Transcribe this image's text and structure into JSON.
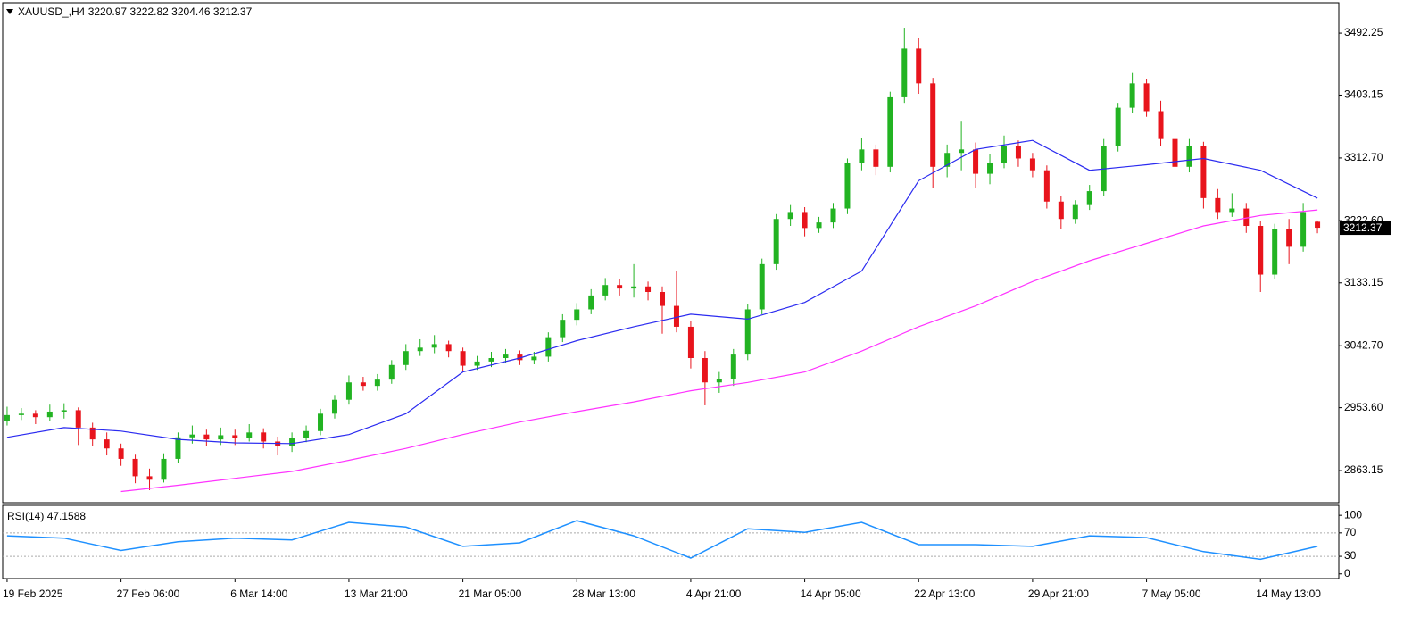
{
  "chart_data": {
    "type": "candlestick",
    "symbol": "XAUUSD_,H4",
    "up_color": "#22b322",
    "down_color": "#e8141c",
    "candles": [
      [
        2935,
        2955,
        2928,
        2943
      ],
      [
        2943,
        2953,
        2936,
        2945
      ],
      [
        2945,
        2950,
        2930,
        2940
      ],
      [
        2940,
        2958,
        2934,
        2948
      ],
      [
        2948,
        2960,
        2938,
        2950
      ],
      [
        2950,
        2954,
        2900,
        2925
      ],
      [
        2925,
        2932,
        2898,
        2908
      ],
      [
        2908,
        2918,
        2885,
        2895
      ],
      [
        2895,
        2902,
        2870,
        2880
      ],
      [
        2880,
        2886,
        2845,
        2855
      ],
      [
        2855,
        2866,
        2835,
        2850
      ],
      [
        2850,
        2888,
        2846,
        2880
      ],
      [
        2880,
        2918,
        2874,
        2911
      ],
      [
        2911,
        2928,
        2902,
        2915
      ],
      [
        2915,
        2922,
        2898,
        2908
      ],
      [
        2908,
        2925,
        2900,
        2914
      ],
      [
        2914,
        2922,
        2900,
        2910
      ],
      [
        2910,
        2930,
        2905,
        2918
      ],
      [
        2918,
        2924,
        2895,
        2905
      ],
      [
        2905,
        2912,
        2885,
        2898
      ],
      [
        2898,
        2918,
        2890,
        2910
      ],
      [
        2910,
        2928,
        2904,
        2920
      ],
      [
        2920,
        2952,
        2914,
        2945
      ],
      [
        2945,
        2972,
        2938,
        2965
      ],
      [
        2965,
        3000,
        2958,
        2990
      ],
      [
        2990,
        2998,
        2978,
        2985
      ],
      [
        2985,
        3002,
        2978,
        2994
      ],
      [
        2994,
        3022,
        2988,
        3015
      ],
      [
        3015,
        3045,
        3008,
        3035
      ],
      [
        3035,
        3052,
        3028,
        3040
      ],
      [
        3040,
        3058,
        3032,
        3045
      ],
      [
        3045,
        3050,
        3026,
        3035
      ],
      [
        3035,
        3040,
        3005,
        3014
      ],
      [
        3014,
        3028,
        3008,
        3020
      ],
      [
        3020,
        3034,
        3012,
        3025
      ],
      [
        3025,
        3038,
        3018,
        3030
      ],
      [
        3030,
        3036,
        3015,
        3022
      ],
      [
        3022,
        3034,
        3016,
        3027
      ],
      [
        3027,
        3062,
        3020,
        3055
      ],
      [
        3055,
        3088,
        3048,
        3080
      ],
      [
        3080,
        3104,
        3072,
        3095
      ],
      [
        3095,
        3124,
        3088,
        3115
      ],
      [
        3115,
        3140,
        3108,
        3130
      ],
      [
        3130,
        3138,
        3115,
        3125
      ],
      [
        3125,
        3160,
        3112,
        3128
      ],
      [
        3128,
        3135,
        3108,
        3120
      ],
      [
        3120,
        3128,
        3060,
        3100
      ],
      [
        3100,
        3150,
        3062,
        3070
      ],
      [
        3070,
        3078,
        3010,
        3025
      ],
      [
        3025,
        3035,
        2957,
        2990
      ],
      [
        2990,
        3005,
        2975,
        2995
      ],
      [
        2995,
        3038,
        2985,
        3030
      ],
      [
        3030,
        3102,
        3022,
        3095
      ],
      [
        3095,
        3168,
        3088,
        3160
      ],
      [
        3160,
        3232,
        3152,
        3225
      ],
      [
        3225,
        3245,
        3215,
        3235
      ],
      [
        3235,
        3242,
        3200,
        3212
      ],
      [
        3212,
        3228,
        3205,
        3220
      ],
      [
        3220,
        3248,
        3212,
        3240
      ],
      [
        3240,
        3312,
        3232,
        3305
      ],
      [
        3305,
        3342,
        3295,
        3325
      ],
      [
        3325,
        3332,
        3288,
        3300
      ],
      [
        3300,
        3408,
        3292,
        3400
      ],
      [
        3400,
        3500,
        3392,
        3470
      ],
      [
        3470,
        3485,
        3405,
        3420
      ],
      [
        3420,
        3428,
        3270,
        3300
      ],
      [
        3300,
        3332,
        3285,
        3320
      ],
      [
        3320,
        3365,
        3295,
        3325
      ],
      [
        3325,
        3335,
        3270,
        3290
      ],
      [
        3290,
        3318,
        3275,
        3305
      ],
      [
        3305,
        3345,
        3298,
        3330
      ],
      [
        3330,
        3338,
        3300,
        3312
      ],
      [
        3312,
        3320,
        3285,
        3295
      ],
      [
        3295,
        3302,
        3240,
        3250
      ],
      [
        3250,
        3258,
        3210,
        3225
      ],
      [
        3225,
        3252,
        3218,
        3245
      ],
      [
        3245,
        3274,
        3238,
        3265
      ],
      [
        3265,
        3340,
        3258,
        3330
      ],
      [
        3330,
        3392,
        3322,
        3385
      ],
      [
        3385,
        3435,
        3378,
        3420
      ],
      [
        3420,
        3426,
        3372,
        3380
      ],
      [
        3380,
        3395,
        3330,
        3340
      ],
      [
        3340,
        3348,
        3285,
        3300
      ],
      [
        3300,
        3340,
        3292,
        3330
      ],
      [
        3330,
        3336,
        3240,
        3255
      ],
      [
        3255,
        3268,
        3225,
        3235
      ],
      [
        3235,
        3262,
        3228,
        3240
      ],
      [
        3240,
        3248,
        3205,
        3215
      ],
      [
        3215,
        3222,
        3120,
        3145
      ],
      [
        3145,
        3218,
        3138,
        3210
      ],
      [
        3210,
        3225,
        3160,
        3185
      ],
      [
        3185,
        3248,
        3178,
        3235
      ],
      [
        3220.97,
        3222.82,
        3204.46,
        3212.37
      ]
    ],
    "xlim": [
      -0.31,
      93.5
    ],
    "xticks": [
      {
        "value": 0,
        "label": "19 Feb 2025"
      },
      {
        "value": 8,
        "label": "27 Feb 06:00"
      },
      {
        "value": 16,
        "label": "6 Mar 14:00"
      },
      {
        "value": 24,
        "label": "13 Mar 21:00"
      },
      {
        "value": 32,
        "label": "21 Mar 05:00"
      },
      {
        "value": 40,
        "label": "28 Mar 13:00"
      },
      {
        "value": 48,
        "label": "4 Apr 21:00"
      },
      {
        "value": 56,
        "label": "14 Apr 05:00"
      },
      {
        "value": 64,
        "label": "22 Apr 13:00"
      },
      {
        "value": 72,
        "label": "29 Apr 21:00"
      },
      {
        "value": 80,
        "label": "7 May 05:00"
      },
      {
        "value": 88,
        "label": "14 May 13:00"
      }
    ],
    "ylim": [
      2817,
      3536
    ],
    "yticks": [
      3492.25,
      3403.15,
      {
        "value": 3312.7,
        "label": "3312.70"
      },
      {
        "value": 3222.6,
        "label": "3222.60"
      },
      3133.15,
      {
        "value": 3042.7,
        "label": "3042.70"
      },
      {
        "value": 2953.6,
        "label": "2953.60"
      },
      2863.15
    ],
    "series": [
      {
        "color": "#2b2bf0",
        "x": [
          0,
          4,
          8,
          12,
          16,
          20,
          24,
          28,
          32,
          36,
          40,
          44,
          48,
          52,
          56,
          60,
          64,
          68,
          72,
          76,
          80,
          84,
          88,
          92
        ],
        "values": [
          2911,
          2925,
          2920,
          2908,
          2903,
          2902,
          2915,
          2945,
          3005,
          3025,
          3050,
          3070,
          3088,
          3081,
          3105,
          3150,
          3280,
          3325,
          3338,
          3295,
          3303,
          3312,
          3295,
          3255
        ]
      },
      {
        "color": "#ff33ff",
        "x": [
          8,
          12,
          16,
          20,
          24,
          28,
          32,
          36,
          40,
          44,
          48,
          52,
          56,
          60,
          64,
          68,
          72,
          76,
          80,
          84,
          88,
          92
        ],
        "values": [
          2833,
          2842,
          2852,
          2862,
          2878,
          2895,
          2915,
          2933,
          2948,
          2962,
          2978,
          2990,
          3005,
          3035,
          3070,
          3100,
          3135,
          3165,
          3190,
          3215,
          3230,
          3238
        ]
      }
    ],
    "rsi": {
      "label": "RSI(14)",
      "value": 47.1588,
      "color": "#1e90ff",
      "x": [
        0,
        4,
        8,
        12,
        16,
        20,
        24,
        28,
        32,
        36,
        40,
        44,
        48,
        52,
        56,
        60,
        64,
        68,
        72,
        76,
        80,
        84,
        88,
        92
      ],
      "values": [
        65,
        61,
        40,
        55,
        61,
        58,
        88,
        80,
        47,
        53,
        91,
        65,
        27,
        77,
        71,
        88,
        50,
        50,
        47,
        65,
        62,
        38,
        25,
        47
      ],
      "ylim": [
        -8,
        117
      ],
      "yticks": [
        100,
        70,
        30,
        0
      ],
      "levels": [
        70,
        30
      ]
    }
  }
}
